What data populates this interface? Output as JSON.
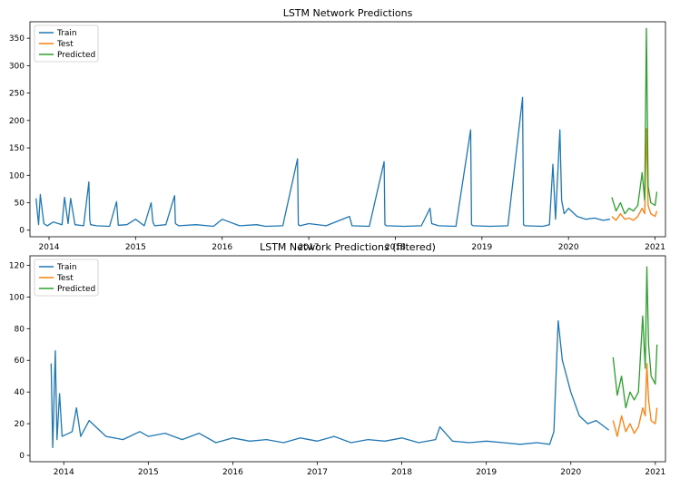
{
  "chart_data": [
    {
      "type": "line",
      "title": "LSTM Network Predictions",
      "xlabel": "",
      "ylabel": "",
      "xlim": [
        2013.78,
        2021.12
      ],
      "ylim": [
        -12,
        380
      ],
      "x_ticks": [
        2014,
        2015,
        2016,
        2017,
        2018,
        2019,
        2020,
        2021
      ],
      "x_tick_labels": [
        "2014",
        "2015",
        "2016",
        "2017",
        "2018",
        "2019",
        "2020",
        "2021"
      ],
      "y_ticks": [
        0,
        50,
        100,
        150,
        200,
        250,
        300,
        350
      ],
      "y_tick_labels": [
        "0",
        "50",
        "100",
        "150",
        "200",
        "250",
        "300",
        "350"
      ],
      "grid": false,
      "legend_position": "upper-left",
      "series": [
        {
          "name": "Train",
          "color": "#1f77b4",
          "x": [
            2013.85,
            2013.88,
            2013.9,
            2013.94,
            2013.98,
            2014.05,
            2014.15,
            2014.18,
            2014.22,
            2014.25,
            2014.3,
            2014.4,
            2014.46,
            2014.47,
            2014.48,
            2014.55,
            2014.7,
            2014.78,
            2014.8,
            2014.9,
            2015.0,
            2015.1,
            2015.18,
            2015.2,
            2015.22,
            2015.35,
            2015.45,
            2015.46,
            2015.5,
            2015.7,
            2015.9,
            2016.0,
            2016.2,
            2016.4,
            2016.5,
            2016.7,
            2016.87,
            2016.88,
            2016.9,
            2017.0,
            2017.2,
            2017.47,
            2017.5,
            2017.7,
            2017.87,
            2017.88,
            2017.9,
            2018.1,
            2018.3,
            2018.4,
            2018.42,
            2018.5,
            2018.7,
            2018.87,
            2018.88,
            2018.9,
            2019.1,
            2019.3,
            2019.47,
            2019.48,
            2019.5,
            2019.7,
            2019.78,
            2019.82,
            2019.85,
            2019.9,
            2019.92,
            2019.95,
            2020.0,
            2020.1,
            2020.2,
            2020.3,
            2020.4,
            2020.48
          ],
          "y": [
            58,
            10,
            65,
            12,
            8,
            15,
            10,
            60,
            12,
            58,
            10,
            8,
            88,
            20,
            10,
            8,
            7,
            52,
            9,
            10,
            20,
            8,
            50,
            15,
            8,
            10,
            63,
            12,
            8,
            10,
            7,
            20,
            8,
            10,
            7,
            8,
            130,
            10,
            8,
            12,
            8,
            25,
            8,
            7,
            125,
            10,
            8,
            7,
            8,
            40,
            12,
            8,
            7,
            183,
            10,
            8,
            7,
            8,
            242,
            10,
            8,
            7,
            10,
            120,
            20,
            183,
            55,
            30,
            40,
            25,
            20,
            22,
            18,
            20
          ]
        },
        {
          "name": "Test",
          "color": "#ff7f0e",
          "x": [
            2020.5,
            2020.55,
            2020.6,
            2020.65,
            2020.7,
            2020.75,
            2020.8,
            2020.85,
            2020.88,
            2020.9,
            2020.92,
            2020.95,
            2021.0,
            2021.02
          ],
          "y": [
            25,
            18,
            30,
            20,
            22,
            18,
            25,
            40,
            30,
            185,
            45,
            30,
            25,
            35
          ]
        },
        {
          "name": "Predicted",
          "color": "#2ca02c",
          "x": [
            2020.5,
            2020.55,
            2020.6,
            2020.65,
            2020.7,
            2020.75,
            2020.8,
            2020.85,
            2020.88,
            2020.9,
            2020.92,
            2020.95,
            2021.0,
            2021.02
          ],
          "y": [
            60,
            35,
            50,
            30,
            40,
            35,
            45,
            105,
            55,
            368,
            80,
            50,
            45,
            70
          ]
        }
      ]
    },
    {
      "type": "line",
      "title": "LSTM Network Predictions (filtered)",
      "xlabel": "",
      "ylabel": "",
      "xlim": [
        2013.6,
        2021.12
      ],
      "ylim": [
        -4,
        126
      ],
      "x_ticks": [
        2014,
        2015,
        2016,
        2017,
        2018,
        2019,
        2020,
        2021
      ],
      "x_tick_labels": [
        "2014",
        "2015",
        "2016",
        "2017",
        "2018",
        "2019",
        "2020",
        "2021"
      ],
      "y_ticks": [
        0,
        20,
        40,
        60,
        80,
        100,
        120
      ],
      "y_tick_labels": [
        "0",
        "20",
        "40",
        "60",
        "80",
        "100",
        "120"
      ],
      "grid": false,
      "legend_position": "upper-left",
      "series": [
        {
          "name": "Train",
          "color": "#1f77b4",
          "x": [
            2013.85,
            2013.87,
            2013.9,
            2013.92,
            2013.95,
            2013.98,
            2014.1,
            2014.15,
            2014.2,
            2014.3,
            2014.5,
            2014.7,
            2014.9,
            2015.0,
            2015.2,
            2015.4,
            2015.6,
            2015.8,
            2016.0,
            2016.2,
            2016.4,
            2016.6,
            2016.8,
            2017.0,
            2017.2,
            2017.4,
            2017.6,
            2017.8,
            2018.0,
            2018.2,
            2018.4,
            2018.45,
            2018.6,
            2018.8,
            2019.0,
            2019.2,
            2019.4,
            2019.6,
            2019.75,
            2019.8,
            2019.85,
            2019.9,
            2019.95,
            2020.0,
            2020.1,
            2020.2,
            2020.3,
            2020.45
          ],
          "y": [
            58,
            5,
            66,
            10,
            39,
            12,
            15,
            30,
            12,
            22,
            12,
            10,
            15,
            12,
            14,
            10,
            14,
            8,
            11,
            9,
            10,
            8,
            11,
            9,
            12,
            8,
            10,
            9,
            11,
            8,
            10,
            18,
            9,
            8,
            9,
            8,
            7,
            8,
            7,
            15,
            85,
            60,
            50,
            40,
            25,
            20,
            22,
            16
          ]
        },
        {
          "name": "Test",
          "color": "#ff7f0e",
          "x": [
            2020.5,
            2020.55,
            2020.6,
            2020.65,
            2020.7,
            2020.75,
            2020.8,
            2020.85,
            2020.88,
            2020.9,
            2020.92,
            2020.95,
            2021.0,
            2021.02
          ],
          "y": [
            22,
            12,
            25,
            15,
            20,
            14,
            18,
            30,
            25,
            58,
            35,
            22,
            20,
            30
          ]
        },
        {
          "name": "Predicted",
          "color": "#2ca02c",
          "x": [
            2020.5,
            2020.55,
            2020.6,
            2020.65,
            2020.7,
            2020.75,
            2020.8,
            2020.85,
            2020.88,
            2020.9,
            2020.92,
            2020.95,
            2021.0,
            2021.02
          ],
          "y": [
            62,
            38,
            50,
            30,
            40,
            35,
            40,
            88,
            55,
            119,
            70,
            50,
            45,
            70
          ]
        }
      ]
    }
  ]
}
